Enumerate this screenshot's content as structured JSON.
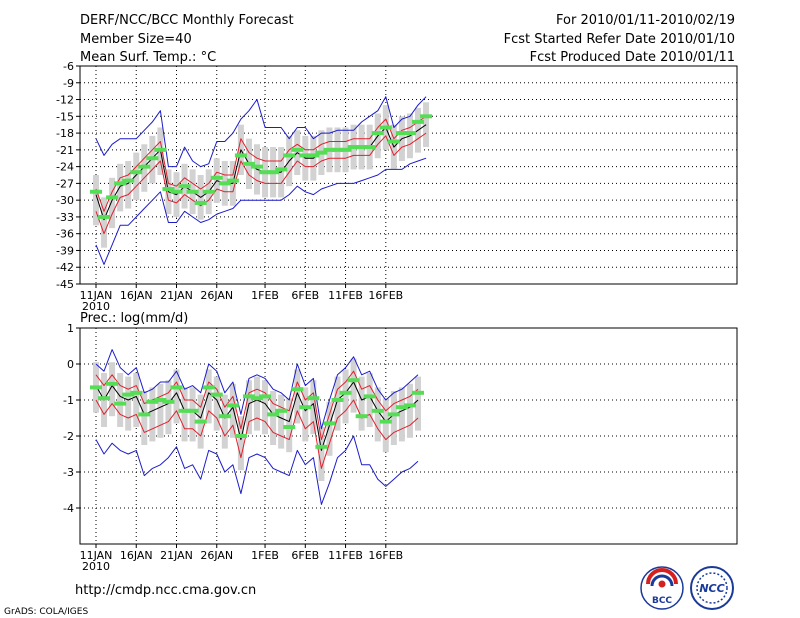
{
  "header": {
    "title": "DERF/NCC/BCC Monthly Forecast",
    "member_size": "Member Size=40",
    "variable": "Mean Surf. Temp.: °C",
    "period": "For 2010/01/11-2010/02/19",
    "started": "Fcst Started Refer Date 2010/01/10",
    "produced": "Fcst Produced Date 2010/01/11"
  },
  "footer": {
    "url": "http://cmdp.ncc.cma.gov.cn",
    "grads": "GrADS: COLA/IGES",
    "logo_bcc": "BCC",
    "logo_ncc": "NCC"
  },
  "colors": {
    "box": "#d2d2d2",
    "mean": "#000000",
    "spread": "#e0202e",
    "range": "#1c1ccc",
    "climo": "#55dd55",
    "grid": "#000000"
  },
  "chart_data": [
    {
      "type": "line",
      "title": "Mean Surf. Temp.: °C",
      "ylim": [
        -45,
        -6
      ],
      "yticks": [
        -6,
        -9,
        -12,
        -15,
        -18,
        -21,
        -24,
        -27,
        -30,
        -33,
        -36,
        -39,
        -42,
        -45
      ],
      "xlabels": [
        "11JAN",
        "16JAN",
        "21JAN",
        "26JAN",
        "1FEB",
        "6FEB",
        "11FEB",
        "16FEB"
      ],
      "year_label": "2010",
      "series": [
        {
          "name": "ensemble mean",
          "values": [
            -29,
            -33.5,
            -30,
            -27.5,
            -27,
            -25.5,
            -24,
            -22.5,
            -21,
            -28.5,
            -29,
            -27.5,
            -28.5,
            -29.5,
            -28.5,
            -26.5,
            -27,
            -27,
            -21,
            -23.5,
            -24.5,
            -25,
            -25,
            -25,
            -23,
            -21.5,
            -22.5,
            -22.5,
            -21.5,
            -21,
            -21,
            -21,
            -20.5,
            -20.5,
            -20.5,
            -18.5,
            -17,
            -20.5,
            -19,
            -18.5,
            -17.5,
            -16.5
          ]
        },
        {
          "name": "upper spread",
          "values": [
            -28,
            -32,
            -28.5,
            -26,
            -25.5,
            -24,
            -22.5,
            -21,
            -19.5,
            -27,
            -27.5,
            -26,
            -27,
            -28,
            -27,
            -25,
            -25.5,
            -25.5,
            -19,
            -21.5,
            -22.5,
            -23,
            -23,
            -23,
            -21,
            -20,
            -21,
            -21,
            -20,
            -19.5,
            -19.5,
            -19.5,
            -19,
            -19,
            -19,
            -17,
            -15.5,
            -19,
            -17.5,
            -17,
            -16,
            -15
          ]
        },
        {
          "name": "lower spread",
          "values": [
            -32,
            -36,
            -32.5,
            -29.5,
            -29,
            -27.5,
            -26,
            -24.5,
            -23,
            -30,
            -30.5,
            -29,
            -30,
            -31,
            -30,
            -28,
            -28.5,
            -28.5,
            -23,
            -25.5,
            -26.5,
            -27,
            -27,
            -27,
            -25,
            -23,
            -24,
            -24,
            -23,
            -22.5,
            -22.5,
            -22.5,
            -22,
            -22,
            -22,
            -20,
            -18.5,
            -22,
            -20.5,
            -20,
            -19,
            -18
          ]
        },
        {
          "name": "ensemble max",
          "values": [
            -19,
            -22,
            -20,
            -19,
            -19,
            -19,
            -17.5,
            -16,
            -14,
            -24,
            -24,
            -20.5,
            -23,
            -24,
            -23.5,
            -19.5,
            -19.5,
            -18,
            -15.5,
            -14,
            -12,
            -17,
            -17,
            -17,
            -19,
            -17,
            -17,
            -19,
            -18,
            -18,
            -17.5,
            -17.5,
            -17.5,
            -16,
            -15,
            -14,
            -11.5,
            -17,
            -15.5,
            -15,
            -13,
            -11.5
          ]
        },
        {
          "name": "ensemble min",
          "values": [
            -38,
            -41.5,
            -38,
            -34.5,
            -34.5,
            -33,
            -31.5,
            -30,
            -28.5,
            -34,
            -34,
            -32,
            -33,
            -34,
            -33.5,
            -32.5,
            -32,
            -31.5,
            -30,
            -30,
            -30,
            -30,
            -30,
            -30,
            -29,
            -27.5,
            -28.5,
            -29,
            -28,
            -27.5,
            -27,
            -27,
            -27,
            -26.5,
            -26,
            -25.5,
            -24.5,
            -24.5,
            -24.5,
            -23.5,
            -23,
            -22.5
          ]
        },
        {
          "name": "observed / climatology",
          "values": [
            -28.5,
            -33,
            -29.5,
            -27,
            -26.5,
            -25,
            -24,
            -22.5,
            -21,
            -28,
            -28.5,
            -27.5,
            -28.5,
            -30.5,
            -28.5,
            -26,
            -27,
            -26.5,
            -22,
            -23.5,
            -24,
            -25,
            -25,
            -24.5,
            -22,
            -21,
            -22,
            -22,
            -21.5,
            -21,
            -21,
            -21,
            -20.5,
            -20.5,
            -20.5,
            -18,
            -17,
            -19.5,
            -18,
            -18,
            -16,
            -15
          ]
        }
      ]
    },
    {
      "type": "line",
      "title": "Prec.: log(mm/d)",
      "ylim": [
        -5,
        1
      ],
      "yticks": [
        1,
        0,
        -1,
        -2,
        -3,
        -4
      ],
      "xlabels": [
        "11JAN",
        "16JAN",
        "21JAN",
        "26JAN",
        "1FEB",
        "6FEB",
        "11FEB",
        "16FEB"
      ],
      "year_label": "2010",
      "series": [
        {
          "name": "ensemble mean",
          "values": [
            -0.6,
            -1.0,
            -0.6,
            -0.9,
            -1.0,
            -0.9,
            -1.4,
            -1.3,
            -1.2,
            -1.1,
            -0.8,
            -1.3,
            -1.3,
            -1.5,
            -0.8,
            -1.0,
            -1.5,
            -1.2,
            -2.1,
            -1.1,
            -1.0,
            -1.1,
            -1.4,
            -1.5,
            -1.6,
            -0.8,
            -1.3,
            -1.1,
            -2.4,
            -1.7,
            -1.0,
            -0.8,
            -0.5,
            -1.0,
            -0.9,
            -1.3,
            -1.6,
            -1.4,
            -1.3,
            -1.2,
            -1.0
          ]
        },
        {
          "name": "upper spread",
          "values": [
            -0.3,
            -0.6,
            -0.3,
            -0.6,
            -0.7,
            -0.6,
            -1.1,
            -1.0,
            -0.9,
            -0.8,
            -0.5,
            -1.0,
            -1.0,
            -1.2,
            -0.5,
            -0.7,
            -1.2,
            -0.9,
            -1.8,
            -0.8,
            -0.7,
            -0.8,
            -1.1,
            -1.2,
            -1.3,
            -0.5,
            -1.0,
            -0.8,
            -2.1,
            -1.4,
            -0.7,
            -0.5,
            -0.2,
            -0.7,
            -0.6,
            -1.0,
            -1.3,
            -1.1,
            -1.0,
            -0.9,
            -0.7
          ]
        },
        {
          "name": "lower spread",
          "values": [
            -1.0,
            -1.4,
            -1.1,
            -1.4,
            -1.5,
            -1.4,
            -1.9,
            -1.8,
            -1.7,
            -1.6,
            -1.3,
            -1.8,
            -1.8,
            -2.0,
            -1.3,
            -1.5,
            -2.0,
            -1.7,
            -2.6,
            -1.6,
            -1.5,
            -1.6,
            -1.9,
            -2.0,
            -2.1,
            -1.3,
            -1.8,
            -1.6,
            -2.9,
            -2.2,
            -1.5,
            -1.3,
            -1.0,
            -1.5,
            -1.4,
            -1.8,
            -2.1,
            -1.9,
            -1.8,
            -1.7,
            -1.5
          ]
        },
        {
          "name": "ensemble max",
          "values": [
            0.0,
            -0.2,
            0.4,
            -0.1,
            -0.3,
            -0.1,
            -0.8,
            -0.7,
            -0.5,
            -0.5,
            -0.2,
            -0.7,
            -0.6,
            -0.8,
            0.0,
            -0.2,
            -0.8,
            -0.5,
            -1.4,
            -0.4,
            -0.3,
            -0.4,
            -0.7,
            -0.8,
            -1.0,
            0.0,
            -0.6,
            -0.4,
            -1.8,
            -1.0,
            -0.3,
            -0.1,
            0.2,
            -0.3,
            -0.2,
            -0.7,
            -1.0,
            -0.8,
            -0.7,
            -0.5,
            -0.3
          ]
        },
        {
          "name": "ensemble min",
          "values": [
            -2.1,
            -2.5,
            -2.2,
            -2.4,
            -2.5,
            -2.4,
            -3.1,
            -2.9,
            -2.8,
            -2.6,
            -2.3,
            -2.9,
            -2.8,
            -3.2,
            -2.4,
            -2.5,
            -3.0,
            -2.8,
            -3.6,
            -2.6,
            -2.5,
            -2.6,
            -2.9,
            -3.0,
            -3.1,
            -2.4,
            -2.8,
            -2.6,
            -3.9,
            -3.3,
            -2.6,
            -2.4,
            -2.0,
            -2.8,
            -2.8,
            -3.2,
            -3.4,
            -3.2,
            -3.0,
            -2.9,
            -2.7
          ]
        },
        {
          "name": "observed / climatology",
          "values": [
            -0.65,
            -0.95,
            -0.55,
            -1.1,
            -0.85,
            -0.8,
            -1.4,
            -1.05,
            -1.0,
            -1.05,
            -0.65,
            -1.3,
            -1.3,
            -1.6,
            -0.65,
            -0.85,
            -1.45,
            -1.15,
            -2.0,
            -0.9,
            -0.95,
            -0.9,
            -1.4,
            -1.3,
            -1.75,
            -0.7,
            -1.2,
            -0.95,
            -2.3,
            -1.65,
            -1.0,
            -0.8,
            -0.45,
            -1.45,
            -0.9,
            -1.3,
            -1.6,
            -1.4,
            -1.2,
            -1.15,
            -0.8
          ]
        }
      ]
    }
  ]
}
